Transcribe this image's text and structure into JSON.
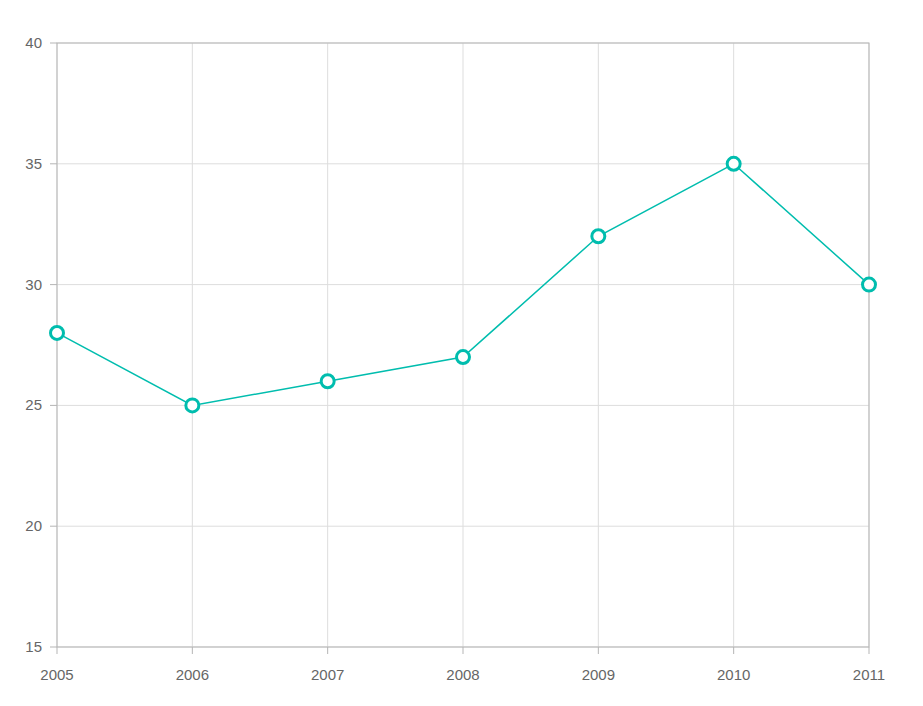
{
  "chart_data": {
    "type": "line",
    "x": [
      2005,
      2006,
      2007,
      2008,
      2009,
      2010,
      2011
    ],
    "values": [
      28,
      25,
      26,
      27,
      32,
      35,
      30
    ],
    "color": "#00bdae",
    "marker": "circle",
    "xlim": [
      2005,
      2011
    ],
    "xticks": [
      2005,
      2006,
      2007,
      2008,
      2009,
      2010,
      2011
    ],
    "ylim": [
      15,
      40
    ],
    "yticks": [
      15,
      20,
      25,
      30,
      35,
      40
    ],
    "grid": true
  }
}
